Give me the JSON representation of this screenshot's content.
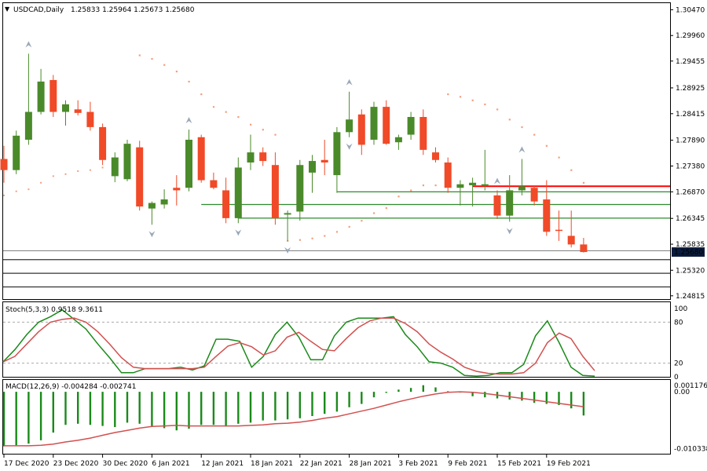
{
  "header": {
    "symbol_label": "USDCAD,Daily",
    "ohlc_label": "1.25833 1.25964 1.25673 1.25680",
    "menu_glyph": "▼"
  },
  "colors": {
    "bull": "#4a8a2a",
    "bear": "#f04a28",
    "sar": "#f0a080",
    "fractal": "#9aa8b8",
    "hline_green": "#2e8b2e",
    "hline_red": "#ff0000",
    "stoch_main": "#1a8a1a",
    "stoch_signal": "#d25050",
    "macd_hist": "#1a8a1a",
    "macd_signal": "#d25050",
    "price_tag_bg": "#0a1a3a"
  },
  "chart_data": [
    {
      "type": "candlestick",
      "title": "USDCAD,Daily",
      "ylim": [
        1.2475,
        1.306
      ],
      "y_ticks": [
        "1.30470",
        "1.29960",
        "1.29455",
        "1.28925",
        "1.28415",
        "1.27890",
        "1.27380",
        "1.26870",
        "1.26345",
        "1.25835",
        "1.25320",
        "1.24815"
      ],
      "current_price": "1.25680",
      "candles": [
        {
          "o": 1.2752,
          "h": 1.2778,
          "l": 1.2705,
          "c": 1.273
        },
        {
          "o": 1.273,
          "h": 1.2808,
          "l": 1.2722,
          "c": 1.2798
        },
        {
          "o": 1.279,
          "h": 1.296,
          "l": 1.278,
          "c": 1.2845
        },
        {
          "o": 1.2845,
          "h": 1.293,
          "l": 1.284,
          "c": 1.2905
        },
        {
          "o": 1.2908,
          "h": 1.2918,
          "l": 1.2835,
          "c": 1.2845
        },
        {
          "o": 1.2845,
          "h": 1.2868,
          "l": 1.2818,
          "c": 1.286
        },
        {
          "o": 1.285,
          "h": 1.2868,
          "l": 1.2838,
          "c": 1.2843
        },
        {
          "o": 1.2845,
          "h": 1.2865,
          "l": 1.2808,
          "c": 1.2815
        },
        {
          "o": 1.2815,
          "h": 1.2822,
          "l": 1.274,
          "c": 1.275
        },
        {
          "o": 1.2718,
          "h": 1.2765,
          "l": 1.2706,
          "c": 1.2755
        },
        {
          "o": 1.2712,
          "h": 1.279,
          "l": 1.2708,
          "c": 1.2782
        },
        {
          "o": 1.2775,
          "h": 1.2788,
          "l": 1.265,
          "c": 1.2658
        },
        {
          "o": 1.2654,
          "h": 1.2668,
          "l": 1.2622,
          "c": 1.2665
        },
        {
          "o": 1.2662,
          "h": 1.2692,
          "l": 1.2654,
          "c": 1.2672
        },
        {
          "o": 1.2695,
          "h": 1.272,
          "l": 1.266,
          "c": 1.269
        },
        {
          "o": 1.2695,
          "h": 1.281,
          "l": 1.2688,
          "c": 1.279
        },
        {
          "o": 1.2795,
          "h": 1.28,
          "l": 1.2705,
          "c": 1.271
        },
        {
          "o": 1.271,
          "h": 1.2725,
          "l": 1.2692,
          "c": 1.2695
        },
        {
          "o": 1.269,
          "h": 1.2715,
          "l": 1.2625,
          "c": 1.2635
        },
        {
          "o": 1.2635,
          "h": 1.2755,
          "l": 1.2625,
          "c": 1.2735
        },
        {
          "o": 1.2745,
          "h": 1.28,
          "l": 1.273,
          "c": 1.2765
        },
        {
          "o": 1.2765,
          "h": 1.2775,
          "l": 1.2738,
          "c": 1.2748
        },
        {
          "o": 1.274,
          "h": 1.2765,
          "l": 1.2622,
          "c": 1.2635
        },
        {
          "o": 1.2642,
          "h": 1.265,
          "l": 1.259,
          "c": 1.2645
        },
        {
          "o": 1.2648,
          "h": 1.275,
          "l": 1.263,
          "c": 1.274
        },
        {
          "o": 1.2725,
          "h": 1.276,
          "l": 1.2685,
          "c": 1.2748
        },
        {
          "o": 1.275,
          "h": 1.279,
          "l": 1.272,
          "c": 1.2745
        },
        {
          "o": 1.272,
          "h": 1.2815,
          "l": 1.2685,
          "c": 1.2805
        },
        {
          "o": 1.2805,
          "h": 1.2885,
          "l": 1.2795,
          "c": 1.283
        },
        {
          "o": 1.284,
          "h": 1.285,
          "l": 1.276,
          "c": 1.278
        },
        {
          "o": 1.279,
          "h": 1.2865,
          "l": 1.278,
          "c": 1.2855
        },
        {
          "o": 1.2855,
          "h": 1.2868,
          "l": 1.278,
          "c": 1.2782
        },
        {
          "o": 1.2785,
          "h": 1.28,
          "l": 1.277,
          "c": 1.2795
        },
        {
          "o": 1.28,
          "h": 1.2845,
          "l": 1.279,
          "c": 1.2835
        },
        {
          "o": 1.2835,
          "h": 1.285,
          "l": 1.276,
          "c": 1.277
        },
        {
          "o": 1.2765,
          "h": 1.2775,
          "l": 1.2745,
          "c": 1.275
        },
        {
          "o": 1.2745,
          "h": 1.2755,
          "l": 1.2685,
          "c": 1.2695
        },
        {
          "o": 1.2695,
          "h": 1.271,
          "l": 1.266,
          "c": 1.2702
        },
        {
          "o": 1.27,
          "h": 1.2715,
          "l": 1.2658,
          "c": 1.2705
        },
        {
          "o": 1.27,
          "h": 1.277,
          "l": 1.269,
          "c": 1.2702
        },
        {
          "o": 1.268,
          "h": 1.269,
          "l": 1.2633,
          "c": 1.264
        },
        {
          "o": 1.264,
          "h": 1.272,
          "l": 1.2628,
          "c": 1.269
        },
        {
          "o": 1.269,
          "h": 1.2752,
          "l": 1.268,
          "c": 1.2698
        },
        {
          "o": 1.2695,
          "h": 1.27,
          "l": 1.266,
          "c": 1.2668
        },
        {
          "o": 1.2672,
          "h": 1.271,
          "l": 1.26,
          "c": 1.2608
        },
        {
          "o": 1.2612,
          "h": 1.265,
          "l": 1.259,
          "c": 1.261
        },
        {
          "o": 1.26,
          "h": 1.265,
          "l": 1.2577,
          "c": 1.2583
        },
        {
          "o": 1.2583,
          "h": 1.2596,
          "l": 1.2567,
          "c": 1.2568
        }
      ],
      "sar": [
        null,
        null,
        null,
        null,
        null,
        null,
        null,
        null,
        null,
        null,
        null,
        1.2957,
        1.295,
        1.2938,
        1.2925,
        1.2905,
        1.288,
        1.2855,
        1.2845,
        1.2835,
        1.282,
        1.281,
        1.28,
        1.259,
        1.2592,
        1.2595,
        1.26,
        1.2608,
        1.2618,
        1.263,
        1.2645,
        1.2655,
        1.2678,
        1.269,
        1.27,
        1.27,
        1.288,
        1.2875,
        1.2868,
        1.286,
        1.285,
        1.283,
        1.2815,
        1.28,
        1.2778,
        1.2755,
        1.273,
        1.2705
      ],
      "sar_early": [
        1.268,
        1.2688,
        1.2692,
        1.2705,
        1.2718,
        1.2722,
        1.2728,
        1.273,
        1.2735
      ],
      "fractals_up": [
        2,
        15,
        28,
        40,
        42
      ],
      "fractals_down": [
        12,
        19,
        23,
        28,
        41
      ],
      "hlines": [
        {
          "y": 1.2687,
          "color": "green",
          "from": 27
        },
        {
          "y": 1.2662,
          "color": "green",
          "from": 16
        },
        {
          "y": 1.2635,
          "color": "green",
          "from": 19
        },
        {
          "y": 1.2698,
          "color": "red",
          "from": 38
        },
        {
          "y": 1.25705,
          "color": "gray"
        },
        {
          "y": 1.2553,
          "color": "dark"
        },
        {
          "y": 1.2526,
          "color": "dark"
        },
        {
          "y": 1.2499,
          "color": "dark"
        }
      ]
    },
    {
      "type": "line",
      "title": "Stoch(5,3,3) 0.9518 9.3611",
      "ylim": [
        0,
        100
      ],
      "y_ticks": [
        "100",
        "80",
        "20",
        "0"
      ],
      "levels": [
        80,
        20
      ],
      "series": [
        {
          "name": "main",
          "values": [
            22,
            40,
            62,
            80,
            88,
            98,
            84,
            70,
            48,
            28,
            6,
            6,
            12,
            12,
            12,
            14,
            10,
            16,
            55,
            55,
            52,
            14,
            30,
            62,
            80,
            58,
            25,
            25,
            60,
            80,
            86,
            86,
            86,
            88,
            62,
            44,
            22,
            20,
            14,
            2,
            1,
            2,
            6,
            6,
            18,
            60,
            82,
            50,
            14,
            2,
            1
          ]
        },
        {
          "name": "signal",
          "values": [
            22,
            30,
            48,
            66,
            80,
            84,
            86,
            80,
            66,
            48,
            28,
            14,
            12,
            12,
            12,
            12,
            12,
            14,
            30,
            45,
            50,
            44,
            32,
            38,
            58,
            65,
            52,
            40,
            38,
            56,
            72,
            82,
            86,
            86,
            78,
            66,
            48,
            36,
            26,
            14,
            8,
            5,
            4,
            4,
            6,
            20,
            50,
            64,
            56,
            30,
            9
          ]
        }
      ]
    },
    {
      "type": "bar",
      "title": "MACD(12,26,9) -0.004284 -0.002741",
      "ylim": [
        -0.0111,
        0.0013
      ],
      "y_ticks": [
        "0.001176",
        "0.00",
        "-0.010338"
      ],
      "histogram": [
        -0.0099,
        -0.0097,
        -0.0094,
        -0.0088,
        -0.0074,
        -0.006,
        -0.0058,
        -0.006,
        -0.0062,
        -0.0064,
        -0.0056,
        -0.0058,
        -0.0062,
        -0.0066,
        -0.007,
        -0.0067,
        -0.006,
        -0.006,
        -0.0063,
        -0.0058,
        -0.0056,
        -0.0052,
        -0.0052,
        -0.005,
        -0.0048,
        -0.0044,
        -0.004,
        -0.0036,
        -0.0028,
        -0.0022,
        -0.001,
        -0.0002,
        0.0004,
        0.0007,
        0.0012,
        0.0008,
        0.0001,
        -0.0001,
        -0.0008,
        -0.001,
        -0.0012,
        -0.0014,
        -0.0016,
        -0.002,
        -0.0022,
        -0.0024,
        -0.003,
        -0.0043
      ],
      "signal": [
        -0.0098,
        -0.0098,
        -0.0098,
        -0.0097,
        -0.0095,
        -0.0091,
        -0.0088,
        -0.0084,
        -0.0079,
        -0.0074,
        -0.007,
        -0.0066,
        -0.0063,
        -0.0062,
        -0.0061,
        -0.0062,
        -0.0062,
        -0.0062,
        -0.0062,
        -0.0062,
        -0.0061,
        -0.006,
        -0.0058,
        -0.0057,
        -0.0055,
        -0.0052,
        -0.0048,
        -0.0045,
        -0.004,
        -0.0035,
        -0.003,
        -0.0024,
        -0.0018,
        -0.0013,
        -0.0008,
        -0.0004,
        -0.0001,
        0.0,
        -0.0001,
        -0.0003,
        -0.0006,
        -0.0009,
        -0.0012,
        -0.0015,
        -0.0018,
        -0.0021,
        -0.0024,
        -0.0027
      ]
    }
  ],
  "x_axis": {
    "date_labels": [
      {
        "text": "17 Dec 2020",
        "index": 0
      },
      {
        "text": "23 Dec 2020",
        "index": 4
      },
      {
        "text": "30 Dec 2020",
        "index": 8
      },
      {
        "text": "6 Jan 2021",
        "index": 12
      },
      {
        "text": "12 Jan 2021",
        "index": 16
      },
      {
        "text": "18 Jan 2021",
        "index": 20
      },
      {
        "text": "22 Jan 2021",
        "index": 24
      },
      {
        "text": "28 Jan 2021",
        "index": 28
      },
      {
        "text": "3 Feb 2021",
        "index": 32
      },
      {
        "text": "9 Feb 2021",
        "index": 36
      },
      {
        "text": "15 Feb 2021",
        "index": 40
      },
      {
        "text": "19 Feb 2021",
        "index": 44
      }
    ]
  }
}
